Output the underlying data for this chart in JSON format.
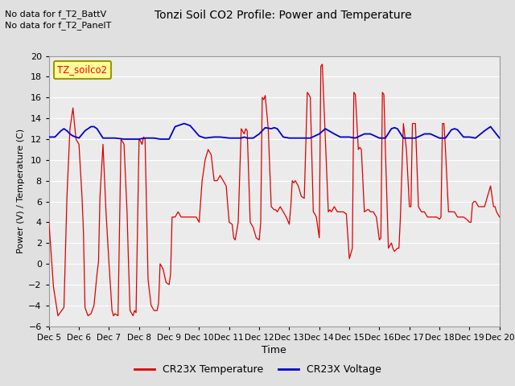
{
  "title": "Tonzi Soil CO2 Profile: Power and Temperature",
  "subtitle_lines": [
    "No data for f_T2_BattV",
    "No data for f_T2_PanelT"
  ],
  "legend_label": "TZ_soilco2",
  "xlabel": "Time",
  "ylabel": "Power (V) / Temperature (C)",
  "ylim": [
    -6,
    20
  ],
  "yticks": [
    -6,
    -4,
    -2,
    0,
    2,
    4,
    6,
    8,
    10,
    12,
    14,
    16,
    18,
    20
  ],
  "xtick_labels": [
    "Dec 5",
    "Dec 6",
    "Dec 7",
    "Dec 8",
    "Dec 9",
    "Dec 10",
    "Dec 11",
    "Dec 12",
    "Dec 13",
    "Dec 14",
    "Dec 15",
    "Dec 16",
    "Dec 17",
    "Dec 18",
    "Dec 19",
    "Dec 20"
  ],
  "bg_color": "#e0e0e0",
  "plot_bg_color": "#ebebeb",
  "grid_color": "#ffffff",
  "temp_color": "#dd0000",
  "volt_color": "#0000cc",
  "legend_bg": "#ffff99",
  "legend_border": "#999900",
  "temp_data_x": [
    0.0,
    0.05,
    0.15,
    0.3,
    0.5,
    0.6,
    0.7,
    0.8,
    0.9,
    1.0,
    1.1,
    1.15,
    1.2,
    1.3,
    1.4,
    1.5,
    1.6,
    1.65,
    1.7,
    1.8,
    1.9,
    2.0,
    2.1,
    2.15,
    2.2,
    2.3,
    2.4,
    2.5,
    2.6,
    2.65,
    2.7,
    2.8,
    2.85,
    2.9,
    3.0,
    3.05,
    3.1,
    3.15,
    3.2,
    3.3,
    3.4,
    3.5,
    3.6,
    3.65,
    3.7,
    3.8,
    3.9,
    4.0,
    4.05,
    4.1,
    4.15,
    4.2,
    4.3,
    4.4,
    4.5,
    4.6,
    4.7,
    4.8,
    4.9,
    5.0,
    5.1,
    5.2,
    5.3,
    5.4,
    5.5,
    5.6,
    5.7,
    5.8,
    5.9,
    6.0,
    6.1,
    6.15,
    6.2,
    6.3,
    6.4,
    6.5,
    6.55,
    6.6,
    6.7,
    6.8,
    6.9,
    7.0,
    7.05,
    7.1,
    7.15,
    7.2,
    7.3,
    7.4,
    7.5,
    7.55,
    7.6,
    7.7,
    7.8,
    7.9,
    8.0,
    8.05,
    8.1,
    8.15,
    8.2,
    8.3,
    8.4,
    8.5,
    8.6,
    8.65,
    8.7,
    8.8,
    8.85,
    8.9,
    9.0,
    9.05,
    9.1,
    9.2,
    9.3,
    9.35,
    9.4,
    9.5,
    9.6,
    9.7,
    9.8,
    9.9,
    10.0,
    10.1,
    10.15,
    10.2,
    10.3,
    10.35,
    10.4,
    10.5,
    10.6,
    10.65,
    10.7,
    10.8,
    10.9,
    11.0,
    11.05,
    11.1,
    11.15,
    11.2,
    11.3,
    11.4,
    11.45,
    11.5,
    11.6,
    11.65,
    11.7,
    11.8,
    11.9,
    12.0,
    12.05,
    12.1,
    12.15,
    12.2,
    12.3,
    12.4,
    12.5,
    12.6,
    12.7,
    12.8,
    12.9,
    13.0,
    13.05,
    13.1,
    13.15,
    13.2,
    13.3,
    13.4,
    13.5,
    13.6,
    13.7,
    13.8,
    13.9,
    14.0,
    14.05,
    14.1,
    14.15,
    14.2,
    14.3,
    14.4,
    14.45,
    14.5,
    14.55,
    14.6,
    14.7,
    14.8,
    14.85,
    14.9,
    15.0
  ],
  "temp_data_y": [
    4.0,
    2.0,
    -2.2,
    -5.0,
    -4.2,
    6.5,
    13.0,
    15.0,
    12.0,
    11.5,
    6.5,
    3.0,
    -4.2,
    -5.0,
    -4.8,
    -4.0,
    -1.0,
    0.2,
    6.5,
    11.5,
    5.0,
    0.0,
    -4.5,
    -5.0,
    -4.8,
    -5.0,
    12.0,
    11.5,
    5.0,
    0.0,
    -4.5,
    -5.0,
    -4.5,
    -4.7,
    12.0,
    11.8,
    11.5,
    12.2,
    12.0,
    -1.5,
    -4.0,
    -4.5,
    -4.5,
    -3.8,
    0.0,
    -0.5,
    -1.8,
    -2.0,
    -1.0,
    4.5,
    4.5,
    4.5,
    5.0,
    4.5,
    4.5,
    4.5,
    4.5,
    4.5,
    4.5,
    4.0,
    8.0,
    10.0,
    11.0,
    10.5,
    8.0,
    8.0,
    8.5,
    8.0,
    7.5,
    4.0,
    3.8,
    2.5,
    2.3,
    4.0,
    13.0,
    12.5,
    13.0,
    12.8,
    4.0,
    3.5,
    2.5,
    2.3,
    4.0,
    16.0,
    15.8,
    16.2,
    13.0,
    5.5,
    5.2,
    5.2,
    5.0,
    5.5,
    5.0,
    4.5,
    3.8,
    5.5,
    8.0,
    7.8,
    8.0,
    7.5,
    6.5,
    6.3,
    16.5,
    16.3,
    16.0,
    5.0,
    4.8,
    4.5,
    2.5,
    19.0,
    19.2,
    12.0,
    5.0,
    5.2,
    5.0,
    5.5,
    5.0,
    5.0,
    5.0,
    4.8,
    0.5,
    1.5,
    16.5,
    16.3,
    11.0,
    11.2,
    11.0,
    5.0,
    5.2,
    5.2,
    5.0,
    5.0,
    4.5,
    2.3,
    2.5,
    16.5,
    16.3,
    11.0,
    1.5,
    2.0,
    1.5,
    1.2,
    1.5,
    1.5,
    4.5,
    13.5,
    11.0,
    5.5,
    5.5,
    13.5,
    13.5,
    13.5,
    5.5,
    5.0,
    5.0,
    4.5,
    4.5,
    4.5,
    4.5,
    4.3,
    4.5,
    13.5,
    13.5,
    11.0,
    5.0,
    5.0,
    5.0,
    4.5,
    4.5,
    4.5,
    4.3,
    4.0,
    4.0,
    5.8,
    6.0,
    6.0,
    5.5,
    5.5,
    5.5,
    5.5,
    6.0,
    6.5,
    7.5,
    5.5,
    5.5,
    5.0,
    4.5
  ],
  "volt_data_x": [
    0.0,
    0.2,
    0.4,
    0.5,
    0.6,
    0.7,
    0.8,
    0.9,
    1.0,
    1.2,
    1.4,
    1.5,
    1.6,
    1.8,
    2.0,
    2.2,
    2.5,
    2.7,
    3.0,
    3.2,
    3.5,
    3.7,
    4.0,
    4.2,
    4.5,
    4.7,
    5.0,
    5.2,
    5.5,
    5.7,
    6.0,
    6.2,
    6.4,
    6.5,
    6.6,
    6.8,
    7.0,
    7.2,
    7.4,
    7.5,
    7.6,
    7.8,
    8.0,
    8.2,
    8.5,
    8.7,
    9.0,
    9.2,
    9.5,
    9.7,
    10.0,
    10.2,
    10.5,
    10.7,
    11.0,
    11.2,
    11.4,
    11.5,
    11.6,
    11.8,
    12.0,
    12.2,
    12.5,
    12.7,
    13.0,
    13.2,
    13.4,
    13.5,
    13.6,
    13.8,
    14.0,
    14.2,
    14.5,
    14.7,
    15.0
  ],
  "volt_data_y": [
    12.2,
    12.2,
    12.8,
    13.0,
    12.8,
    12.5,
    12.3,
    12.2,
    12.1,
    12.8,
    13.2,
    13.2,
    13.0,
    12.1,
    12.1,
    12.1,
    12.0,
    12.0,
    12.0,
    12.1,
    12.1,
    12.0,
    12.0,
    13.2,
    13.5,
    13.3,
    12.3,
    12.1,
    12.2,
    12.2,
    12.1,
    12.1,
    12.1,
    12.2,
    12.1,
    12.1,
    12.5,
    13.1,
    13.0,
    13.1,
    13.0,
    12.2,
    12.1,
    12.1,
    12.1,
    12.1,
    12.5,
    13.0,
    12.5,
    12.2,
    12.2,
    12.1,
    12.5,
    12.5,
    12.1,
    12.1,
    13.0,
    13.1,
    13.0,
    12.1,
    12.1,
    12.1,
    12.5,
    12.5,
    12.1,
    12.1,
    12.9,
    13.0,
    12.9,
    12.2,
    12.2,
    12.1,
    12.8,
    13.2,
    12.1
  ]
}
